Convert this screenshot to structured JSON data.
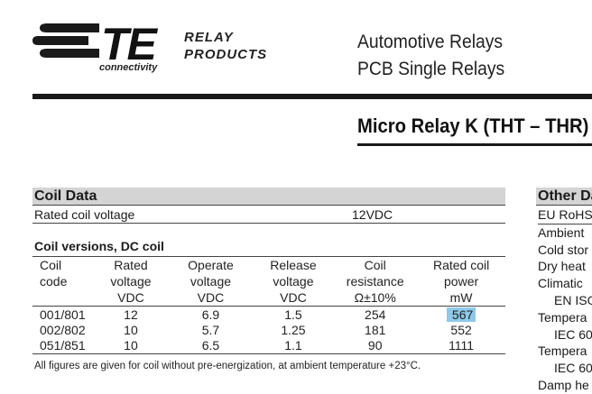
{
  "header": {
    "logo_letters": "TE",
    "logo_sub": "connectivity",
    "logo_tag_line1": "RELAY",
    "logo_tag_line2": "PRODUCTS",
    "category_line1": "Automotive Relays",
    "category_line2": "PCB Single Relays",
    "product_title": "Micro Relay K (THT – THR)"
  },
  "coil_data": {
    "section_title": "Coil Data",
    "rated_voltage_label": "Rated coil voltage",
    "rated_voltage_value": "12VDC",
    "versions_title": "Coil versions, DC coil",
    "columns": [
      {
        "l1": "Coil",
        "l2": "code",
        "l3": ""
      },
      {
        "l1": "Rated",
        "l2": "voltage",
        "l3": "VDC"
      },
      {
        "l1": "Operate",
        "l2": "voltage",
        "l3": "VDC"
      },
      {
        "l1": "Release",
        "l2": "voltage",
        "l3": "VDC"
      },
      {
        "l1": "Coil",
        "l2": "resistance",
        "l3": "Ω±10%"
      },
      {
        "l1": "Rated coil",
        "l2": "power",
        "l3": "mW"
      }
    ],
    "rows": [
      [
        "001/801",
        "12",
        "6.9",
        "1.5",
        "254",
        "567"
      ],
      [
        "002/802",
        "10",
        "5.7",
        "1.25",
        "181",
        "552"
      ],
      [
        "051/851",
        "10",
        "6.5",
        "1.1",
        "90",
        "1111"
      ]
    ],
    "highlight_color": "#8ec9ea",
    "footnote": "All figures are given for coil without pre-energization, at ambient temperature +23°C."
  },
  "other_data": {
    "section_title": "Other Data",
    "items": [
      "EU RoHS",
      "Ambient",
      "Cold stor",
      "Dry heat",
      "Climatic",
      "EN ISO",
      "Tempera",
      "IEC 60",
      "Tempera",
      "IEC 60",
      "Damp he"
    ]
  }
}
